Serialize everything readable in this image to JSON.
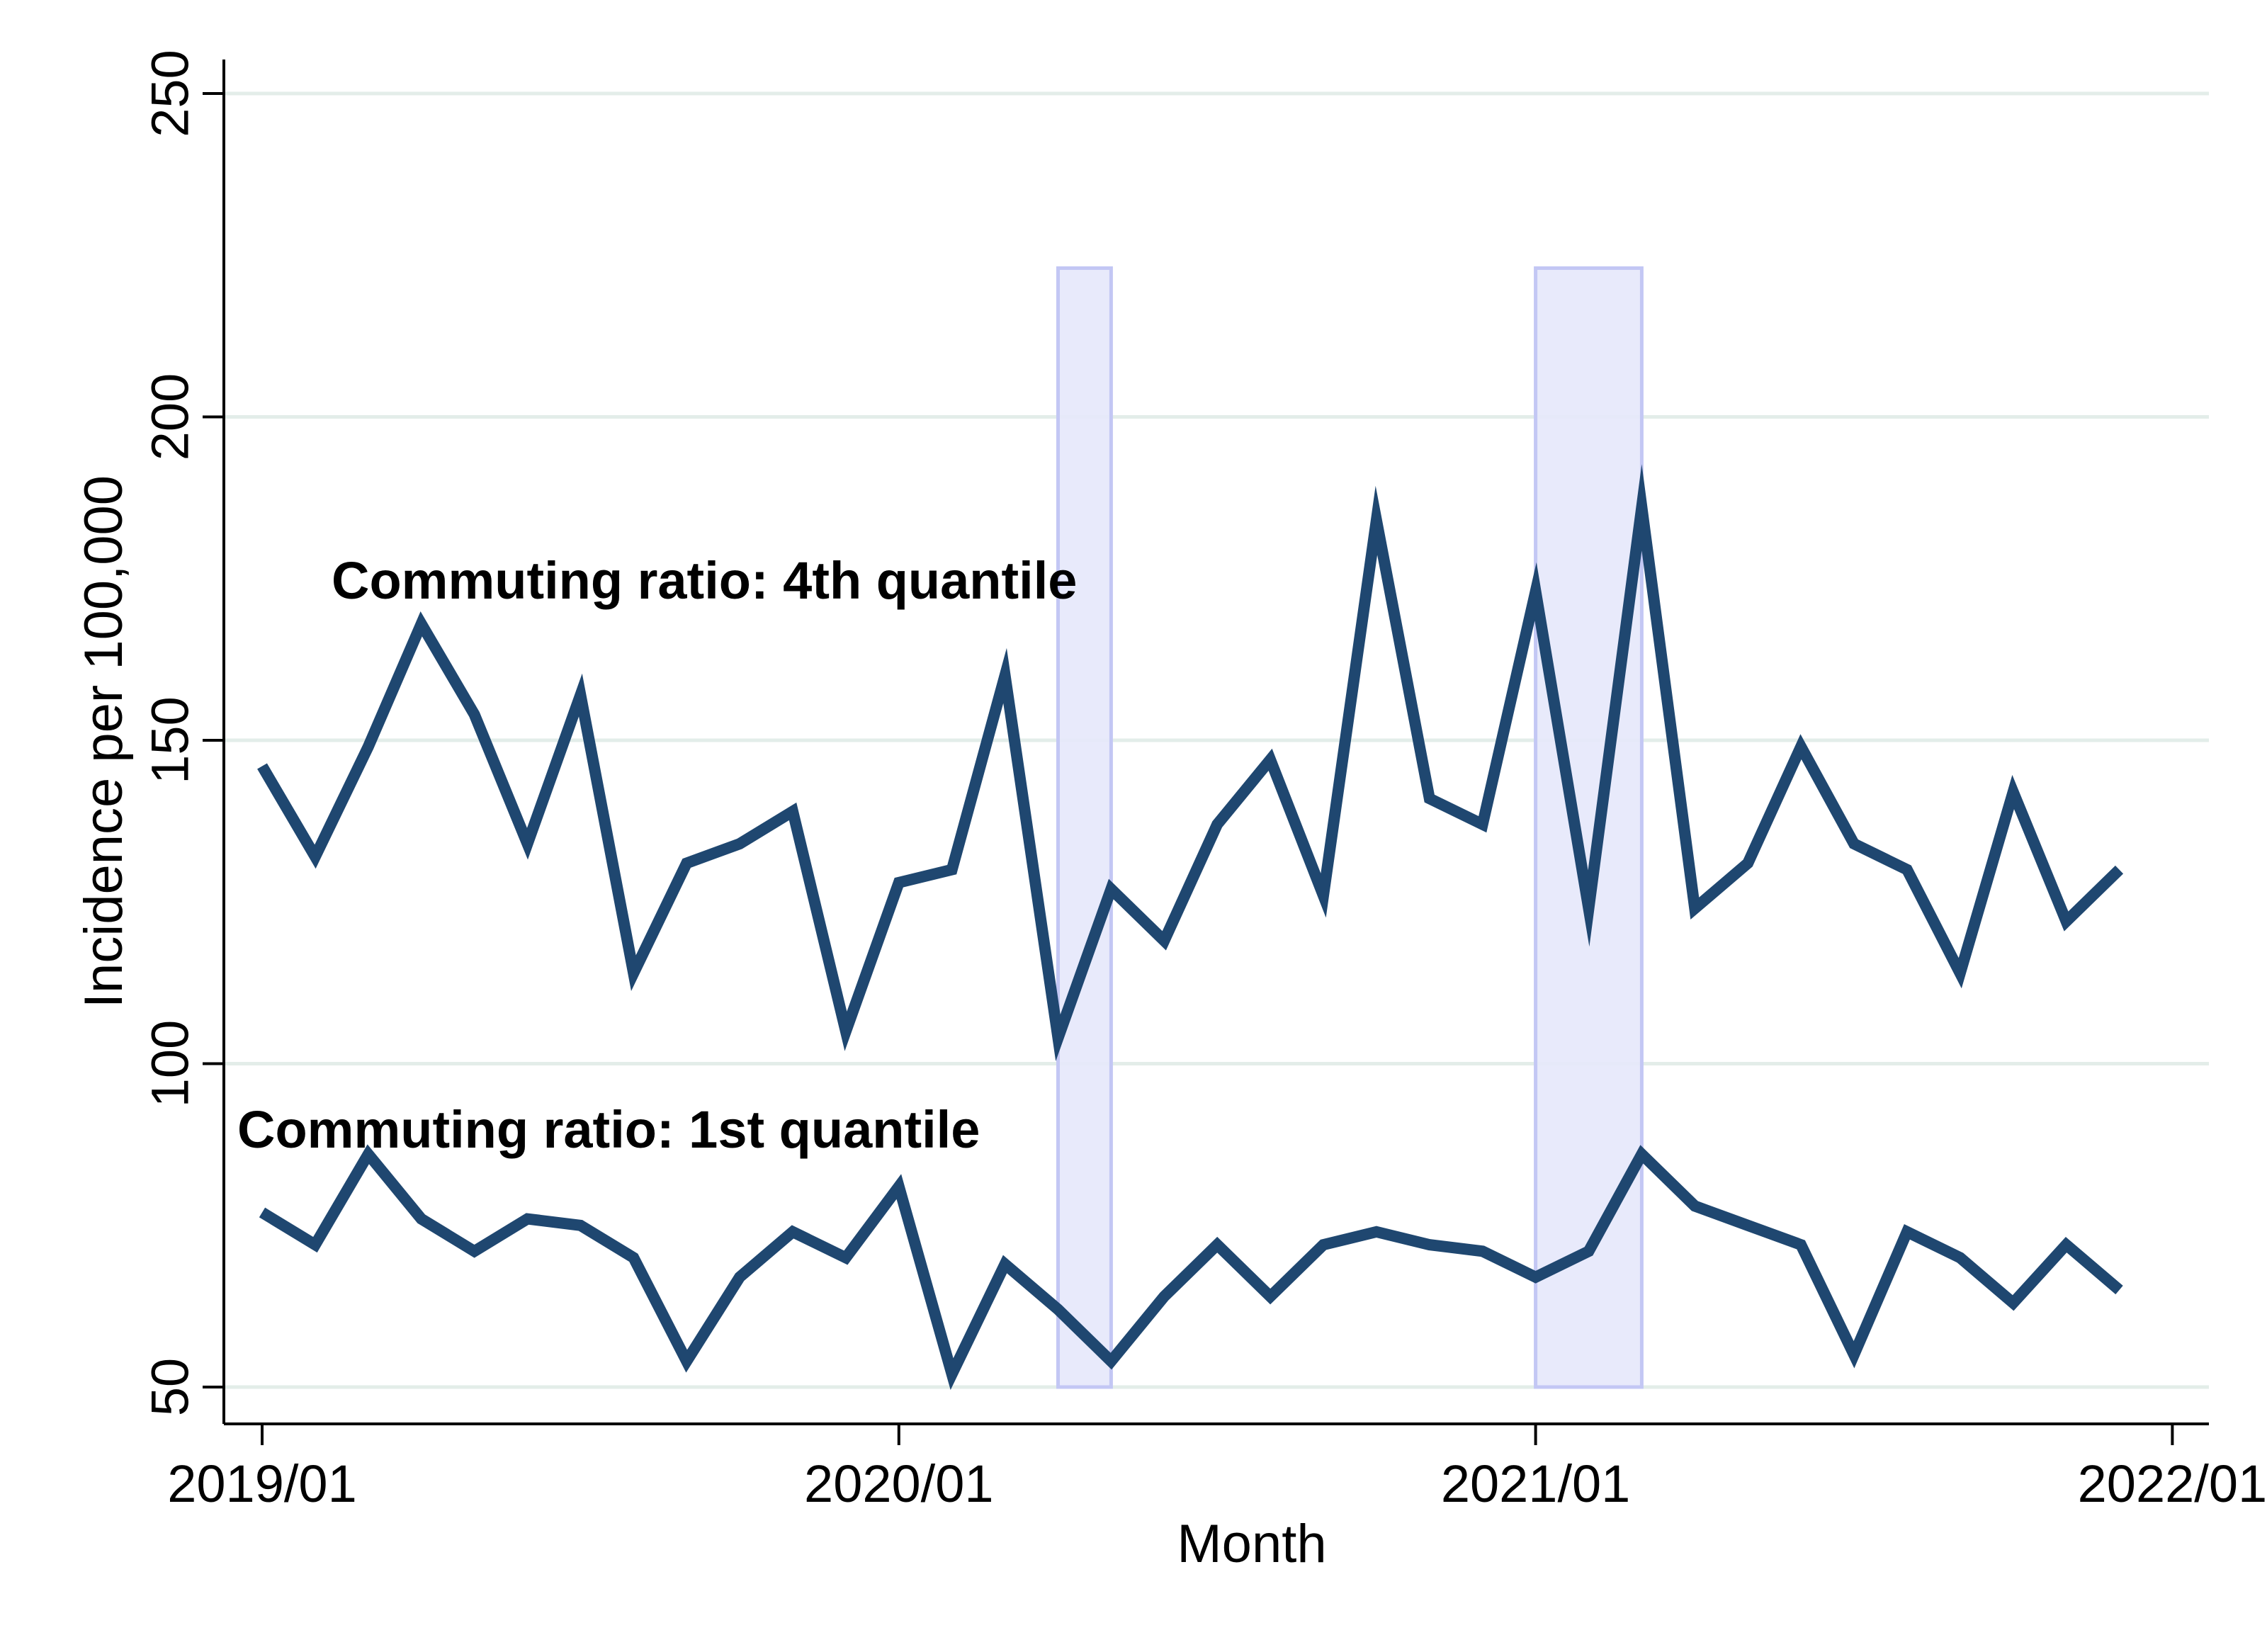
{
  "chart_data": {
    "type": "line",
    "title": "",
    "xlabel": "Month",
    "ylabel": "Incidence per 100,000",
    "ylim": [
      45,
      255
    ],
    "yticks": [
      50,
      100,
      150,
      200,
      250
    ],
    "xticks": [
      "2019/01",
      "2020/01",
      "2021/01",
      "2022/01"
    ],
    "grid": "horizontal",
    "legend": "none",
    "colors": {
      "line": "#1f4770",
      "shade_fill": "#e6e8fb",
      "shade_edge": "#c3c7f4",
      "grid": "#e3ede9",
      "axis": "#000000"
    },
    "x": [
      "2019/01",
      "2019/02",
      "2019/03",
      "2019/04",
      "2019/05",
      "2019/06",
      "2019/07",
      "2019/08",
      "2019/09",
      "2019/10",
      "2019/11",
      "2019/12",
      "2020/01",
      "2020/02",
      "2020/03",
      "2020/04",
      "2020/05",
      "2020/06",
      "2020/07",
      "2020/08",
      "2020/09",
      "2020/10",
      "2020/11",
      "2020/12",
      "2021/01",
      "2021/02",
      "2021/03",
      "2021/04",
      "2021/05",
      "2021/06",
      "2021/07",
      "2021/08",
      "2021/09",
      "2021/10",
      "2021/11",
      "2021/12"
    ],
    "series": [
      {
        "name": "Commuting ratio: 4th quantile",
        "values": [
          146,
          132,
          149,
          168,
          154,
          134,
          157,
          114,
          131,
          134,
          139,
          105,
          128,
          130,
          160,
          104,
          127,
          119,
          137,
          147,
          126,
          184,
          141,
          137,
          173,
          124,
          186,
          124,
          131,
          149,
          134,
          130,
          114,
          142,
          122,
          130
        ]
      },
      {
        "name": "Commuting ratio: 1st quantile",
        "values": [
          77,
          72,
          86,
          76,
          71,
          76,
          75,
          70,
          54,
          67,
          74,
          70,
          81,
          52,
          69,
          62,
          54,
          64,
          72,
          64,
          72,
          74,
          72,
          71,
          67,
          71,
          86,
          78,
          75,
          72,
          55,
          74,
          70,
          63,
          72,
          65
        ]
      }
    ],
    "shaded_periods": [
      {
        "start": "2020/04",
        "end": "2020/05",
        "ymin": 50,
        "ymax": 223
      },
      {
        "start": "2021/01",
        "end": "2021/03",
        "ymin": 50,
        "ymax": 223
      }
    ]
  }
}
